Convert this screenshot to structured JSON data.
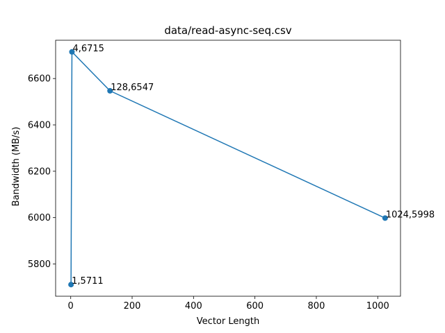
{
  "chart_data": {
    "type": "line",
    "title": "data/read-async-seq.csv",
    "xlabel": "Vector Length",
    "ylabel": "Bandwidth (MB/s)",
    "xlim": [
      -49.15,
      1074.15
    ],
    "ylim": [
      5660.8,
      6765.2
    ],
    "xticks": [
      0,
      200,
      400,
      600,
      800,
      1000
    ],
    "yticks": [
      5800,
      6000,
      6200,
      6400,
      6600
    ],
    "grid": false,
    "series": [
      {
        "x": [
          1,
          4,
          128,
          1024
        ],
        "y": [
          5711,
          6715,
          6547,
          5998
        ],
        "labels": [
          "1,5711",
          "4,6715",
          "128,6547",
          "1024,5998"
        ],
        "color": "#1f77b4",
        "marker": "circle"
      }
    ]
  }
}
